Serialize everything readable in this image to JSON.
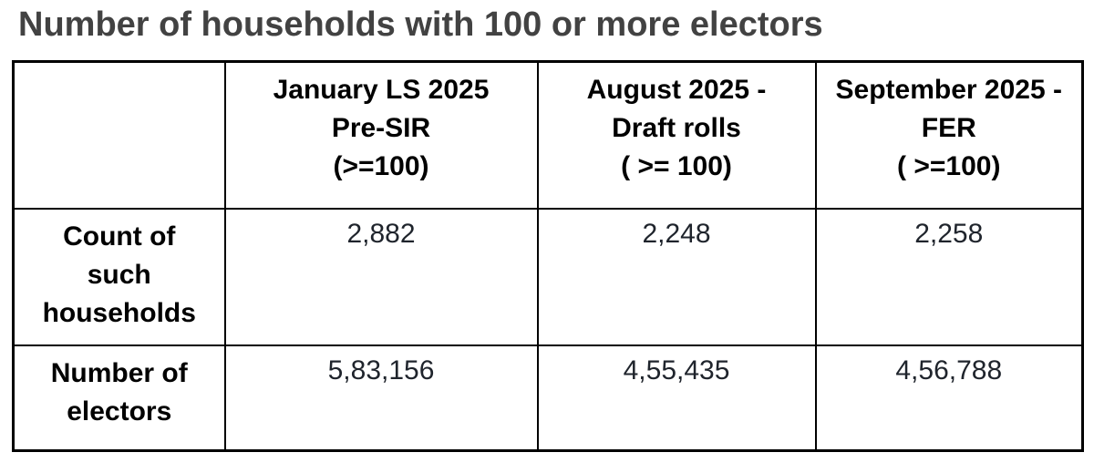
{
  "title": "Number of households with 100 or more electors",
  "table": {
    "column_headers": [
      "January LS 2025\nPre-SIR\n(>=100)",
      "August 2025 -\nDraft rolls\n( >= 100)",
      "September 2025 -\nFER\n( >=100)"
    ],
    "rows": [
      {
        "label": "Count of\nsuch\nhouseholds",
        "values": [
          "2,882",
          "2,248",
          "2,258"
        ]
      },
      {
        "label": "Number of\nelectors",
        "values": [
          "5,83,156",
          "4,55,435",
          "4,56,788"
        ]
      }
    ]
  },
  "chart_data": {
    "type": "table",
    "title": "Number of households with 100 or more electors",
    "columns": [
      "January LS 2025 Pre-SIR (>=100)",
      "August 2025 - Draft rolls ( >= 100)",
      "September 2025 - FER ( >=100)"
    ],
    "rows": [
      {
        "label": "Count of such households",
        "display_values": [
          "2,882",
          "2,248",
          "2,258"
        ],
        "numeric_values": [
          2882,
          2248,
          2258
        ]
      },
      {
        "label": "Number of electors",
        "display_values": [
          "5,83,156",
          "4,55,435",
          "4,56,788"
        ],
        "numeric_values": [
          583156,
          455435,
          456788
        ]
      }
    ],
    "legend": false,
    "grid": true
  },
  "colors": {
    "title_text": "#424242",
    "table_border": "#000000",
    "header_text": "#000000",
    "value_text": "#1f242c",
    "background": "#ffffff"
  }
}
